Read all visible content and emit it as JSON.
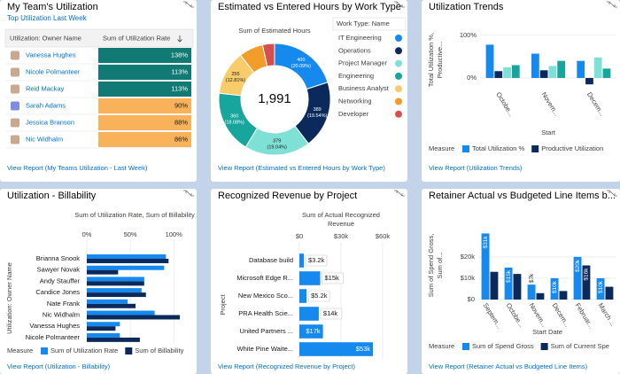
{
  "chart_data": [
    {
      "type": "table",
      "title": "My Team's Utilization",
      "subtitle": "Top Utilization Last Week",
      "columns": [
        "Utilization: Owner Name",
        "Sum of Utilization Rate"
      ],
      "categories": [
        "Vanessa Hughes",
        "Nicole Polmanteer",
        "Reid Mackay",
        "Sarah Adams",
        "Jessica Branson",
        "Nic Widhalm"
      ],
      "values": [
        138,
        113,
        113,
        90,
        88,
        86
      ],
      "value_labels": [
        "138%",
        "113%",
        "113%",
        "90%",
        "88%",
        "86%"
      ],
      "colors": [
        "#127a74",
        "#127a74",
        "#127a74",
        "#f9b25a",
        "#f9b25a",
        "#f9b25a"
      ],
      "link": "View Report (My Teams Utilization - Last Week)"
    },
    {
      "type": "donut",
      "title": "Estimated vs Entered Hours by Work Type",
      "subtitle": "Sum of Estimated Hours",
      "center_label": "1,991",
      "legend_title": "Work Type: Name",
      "categories": [
        "IT Engineering",
        "Operations",
        "Project Manager",
        "Engineering",
        "Business Analyst",
        "Networking",
        "Developer"
      ],
      "values": [
        400,
        389,
        379,
        360,
        255,
        139,
        69
      ],
      "percent_labels": [
        "(20.09%)",
        "(19.54%)",
        "(19.04%)",
        "(18.08%)",
        "(12.81%)",
        null,
        null
      ],
      "colors": [
        "#1589ee",
        "#0b2a5b",
        "#7fe0d5",
        "#18a59c",
        "#f8cc6b",
        "#f29d2a",
        "#d4504c"
      ],
      "link": "View Report (Estimated vs Entered Hours by Work Type)"
    },
    {
      "type": "bar",
      "orientation": "vertical",
      "title": "Utilization Trends",
      "ylabel": "Total Utilization %, Productive...",
      "xlabel": "Start",
      "categories": [
        "Octobe...",
        "Novem...",
        "Decem..."
      ],
      "ylim": [
        -25,
        110
      ],
      "yticks": [
        {
          "value": 0,
          "label": "0%"
        },
        {
          "value": 100,
          "label": "100%"
        }
      ],
      "grid": true,
      "legend_title": "Measure",
      "series": [
        {
          "name": "Total Utilization %",
          "color": "#1589ee",
          "values": [
            78,
            57,
            40
          ]
        },
        {
          "name": "Productive Utilization",
          "color": "#0b2a5b",
          "values": [
            16,
            18,
            -15
          ]
        },
        {
          "color": "#7fe0d5",
          "values": [
            25,
            28,
            48
          ]
        },
        {
          "color": "#18a59c",
          "values": [
            30,
            40,
            22
          ]
        }
      ],
      "link": "View Report (Utilization Trends)"
    },
    {
      "type": "bar",
      "orientation": "horizontal",
      "title": "Utilization - Billability",
      "xlabel": "Sum of Utilization Rate, Sum of Billability",
      "ylabel": "Utilization: Owner Name",
      "categories": [
        "Brianna Snook",
        "Sawyer Novak",
        "Andy Stauffer",
        "Candice Jones",
        "Nate Frank",
        "Nic Widhalm",
        "Vanessa Hughes",
        "Nicole Polmanteer"
      ],
      "xlim": [
        0,
        110
      ],
      "xticks": [
        {
          "value": 0,
          "label": "0%"
        },
        {
          "value": 50,
          "label": "50%"
        },
        {
          "value": 100,
          "label": "100%"
        }
      ],
      "grid": true,
      "legend_title": "Measure",
      "series": [
        {
          "name": "Sum of Utilization Rate",
          "color": "#1589ee",
          "values": [
            91,
            89,
            66,
            63,
            47,
            78,
            38,
            38
          ]
        },
        {
          "name": "Sum of Billability",
          "color": "#0b2a5b",
          "values": [
            94,
            36,
            66,
            68,
            56,
            107,
            33,
            61
          ]
        }
      ],
      "link": "View Report (Utilization - Billability)"
    },
    {
      "type": "bar",
      "orientation": "horizontal",
      "title": "Recognized Revenue by Project",
      "xlabel": "Sum of Actual Recognized Revenue",
      "ylabel": "Project",
      "categories": [
        "Database build",
        "Microsoft Edge R...",
        "New Mexico Sco...",
        "PRA Health Scie...",
        "United Partners ...",
        "White Pine Waite..."
      ],
      "xlim": [
        0,
        60000
      ],
      "xticks": [
        {
          "value": 0,
          "label": "$0"
        },
        {
          "value": 30000,
          "label": "$30k"
        },
        {
          "value": 60000,
          "label": "$60k"
        }
      ],
      "grid": true,
      "series": [
        {
          "color": "#1589ee",
          "values": [
            3200,
            15000,
            5200,
            14000,
            17000,
            53000
          ],
          "value_labels": [
            "$3.2k",
            "$15k",
            "$5.2k",
            "$14k",
            "$17k",
            "$53k"
          ]
        }
      ],
      "link": "View Report (Recognized Revenue by Project)"
    },
    {
      "type": "bar",
      "orientation": "vertical",
      "title": "Retainer Actual vs Budgeted Line Items b...",
      "ylabel": "Sum of Spend Gross, Sum of...",
      "xlabel": "Start Date",
      "categories": [
        "Septem...",
        "Octobe...",
        "Novem...",
        "Decem...",
        "Februar...",
        "March ..."
      ],
      "ylim": [
        0,
        32000
      ],
      "yticks": [
        {
          "value": 0,
          "label": "$0"
        },
        {
          "value": 10000,
          "label": "$10k"
        },
        {
          "value": 20000,
          "label": "$20k"
        }
      ],
      "grid": true,
      "legend_title": "Measure",
      "series": [
        {
          "name": "Sum of Spend Gross",
          "color": "#1589ee",
          "values": [
            31000,
            15000,
            7000,
            10000,
            20000,
            10000
          ],
          "value_labels": [
            "$31k",
            "$15k",
            "$7k",
            "$10k",
            "$20k",
            "$10k"
          ]
        },
        {
          "name": "Sum of Current Spe",
          "color": "#0b2a5b",
          "values": [
            13000,
            12000,
            3000,
            4000,
            16000,
            6000
          ],
          "value_labels": [
            null,
            null,
            null,
            null,
            "$16k",
            null
          ]
        }
      ],
      "link": "View Report (Retainer Actual vs Budgeted Line Items)"
    }
  ]
}
